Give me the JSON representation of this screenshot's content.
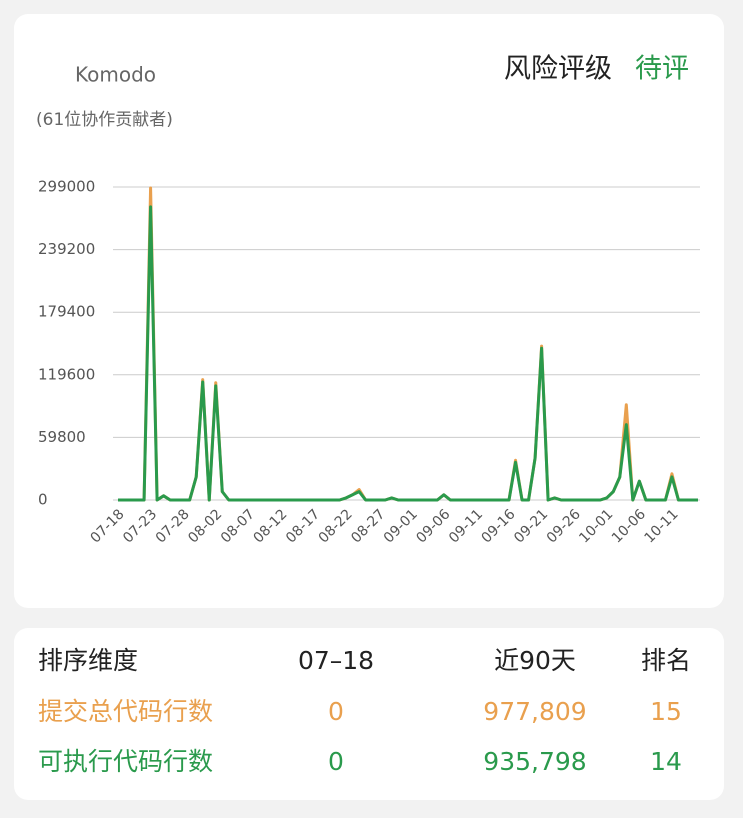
{
  "header": {
    "name": "Komodo",
    "subtitle": "(61位协作贡献者)",
    "risk_label": "风险评级",
    "risk_value": "待评"
  },
  "chart_data": {
    "type": "line",
    "categories": [
      "07-18",
      null,
      null,
      null,
      null,
      "07-23",
      null,
      null,
      null,
      null,
      "07-28",
      null,
      null,
      null,
      null,
      "08-02",
      null,
      null,
      null,
      null,
      "08-07",
      null,
      null,
      null,
      null,
      "08-12",
      null,
      null,
      null,
      null,
      "08-17",
      null,
      null,
      null,
      null,
      "08-22",
      null,
      null,
      null,
      null,
      "08-27",
      null,
      null,
      null,
      null,
      "09-01",
      null,
      null,
      null,
      null,
      "09-06",
      null,
      null,
      null,
      null,
      "09-11",
      null,
      null,
      null,
      null,
      "09-16",
      null,
      null,
      null,
      null,
      "09-21",
      null,
      null,
      null,
      null,
      "09-26",
      null,
      null,
      null,
      null,
      "10-01",
      null,
      null,
      null,
      null,
      "10-06",
      null,
      null,
      null,
      null,
      "10-11",
      null,
      null,
      null,
      null
    ],
    "series": [
      {
        "color": "#e9a04e",
        "values": [
          0,
          0,
          0,
          0,
          0,
          298000,
          0,
          4000,
          0,
          0,
          0,
          0,
          22000,
          115000,
          0,
          112000,
          8000,
          0,
          0,
          0,
          0,
          0,
          0,
          0,
          0,
          0,
          0,
          0,
          0,
          0,
          0,
          0,
          0,
          0,
          0,
          2000,
          5000,
          10000,
          0,
          0,
          0,
          0,
          2000,
          0,
          0,
          0,
          0,
          0,
          0,
          0,
          5000,
          0,
          0,
          0,
          0,
          0,
          0,
          0,
          0,
          0,
          0,
          38000,
          0,
          0,
          40000,
          147000,
          0,
          2000,
          0,
          0,
          0,
          0,
          0,
          0,
          0,
          2000,
          8000,
          22000,
          91000,
          0,
          18000,
          0,
          0,
          0,
          0,
          25000,
          0,
          0,
          0,
          0
        ]
      },
      {
        "color": "#2a9a4c",
        "values": [
          0,
          0,
          0,
          0,
          0,
          280000,
          0,
          4000,
          0,
          0,
          0,
          0,
          22000,
          112700,
          0,
          109000,
          8000,
          0,
          0,
          0,
          0,
          0,
          0,
          0,
          0,
          0,
          0,
          0,
          0,
          0,
          0,
          0,
          0,
          0,
          0,
          2000,
          5000,
          8000,
          0,
          0,
          0,
          0,
          2000,
          0,
          0,
          0,
          0,
          0,
          0,
          0,
          5000,
          0,
          0,
          0,
          0,
          0,
          0,
          0,
          0,
          0,
          0,
          36000,
          0,
          0,
          40000,
          145000,
          0,
          2000,
          0,
          0,
          0,
          0,
          0,
          0,
          0,
          2000,
          8000,
          22000,
          72000,
          0,
          18000,
          0,
          0,
          0,
          0,
          22000,
          0,
          0,
          0,
          0
        ]
      }
    ],
    "ylim": [
      0,
      299000
    ],
    "yticks": [
      0,
      59800,
      119600,
      179400,
      239200,
      299000
    ],
    "grid": true
  },
  "table": {
    "header": [
      "排序维度",
      "07–18",
      "近90天",
      "排名"
    ],
    "rows": [
      [
        "提交总代码行数",
        "0",
        "977,809",
        "15"
      ],
      [
        "可执行代码行数",
        "0",
        "935,798",
        "14"
      ]
    ],
    "row_colors": [
      "#e9a04e",
      "#2a9a4c"
    ]
  }
}
